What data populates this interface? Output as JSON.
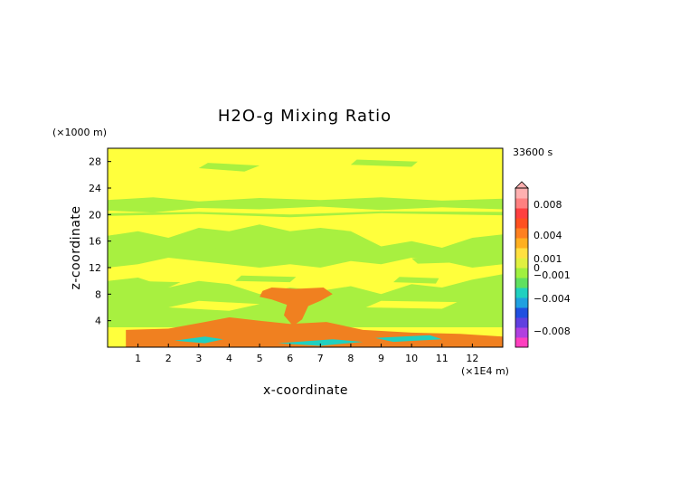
{
  "chart_data": {
    "type": "heatmap",
    "title": "H2O-g Mixing Ratio",
    "xlabel": "x-coordinate",
    "ylabel": "z-coordinate",
    "x_unit": "(×1E4 m)",
    "y_unit": "(×1000 m)",
    "time_label": "33600 s",
    "xlim": [
      0,
      13.0
    ],
    "ylim": [
      0,
      30
    ],
    "xticks": [
      1,
      2,
      3,
      4,
      5,
      6,
      7,
      8,
      9,
      10,
      11,
      12
    ],
    "yticks": [
      4,
      8,
      12,
      16,
      20,
      24,
      28
    ],
    "colorbar": {
      "ticks": [
        {
          "value": 0.008,
          "label": "0.008"
        },
        {
          "value": 0.004,
          "label": "0.004"
        },
        {
          "value": 0.001,
          "label": "0.001"
        },
        {
          "value": 0,
          "label": "0"
        },
        {
          "value": -0.001,
          "label": "−0.001"
        },
        {
          "value": -0.004,
          "label": "−0.004"
        },
        {
          "value": -0.008,
          "label": "−0.008"
        }
      ],
      "colors": [
        "#ff3fbf",
        "#b040e0",
        "#6040e0",
        "#2050e0",
        "#20a0e0",
        "#20d0c0",
        "#60e060",
        "#a0f040",
        "#e0f040",
        "#ffe040",
        "#ffb020",
        "#ff8020",
        "#ff5020",
        "#ff4040",
        "#ff8080",
        "#ffb0b0"
      ]
    },
    "fields": {
      "background_color": "#ffff3c",
      "band_color": "#a8f040",
      "low_level_color": "#f08020",
      "plume_color": "#f08020",
      "negative_color": "#20d0c0"
    }
  }
}
